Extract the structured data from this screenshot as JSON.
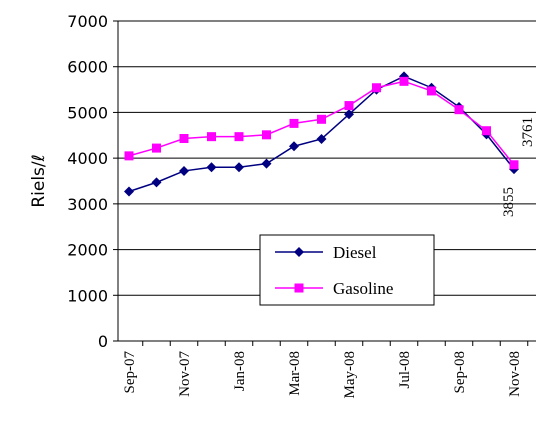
{
  "chart_data": {
    "type": "line",
    "ylabel": "Riels/ℓ",
    "ylim": [
      0,
      7000
    ],
    "y_ticks": [
      "0",
      "1000",
      "2000",
      "3000",
      "4000",
      "5000",
      "6000",
      "7000"
    ],
    "x": [
      "Sep-07",
      "Oct-07",
      "Nov-07",
      "Dec-07",
      "Jan-08",
      "Feb-08",
      "Mar-08",
      "Apr-08",
      "May-08",
      "Jun-08",
      "Jul-08",
      "Aug-08",
      "Sep-08",
      "Oct-08",
      "Nov-08"
    ],
    "x_tick_labels": [
      "Sep-07",
      "Nov-07",
      "Jan-08",
      "Mar-08",
      "May-08",
      "Jul-08",
      "Sep-08",
      "Nov-08"
    ],
    "grid": "horizontal",
    "legend_position": "center-bottom",
    "series": [
      {
        "name": "Diesel",
        "color": "#000080",
        "marker": "diamond",
        "values": [
          3270,
          3470,
          3720,
          3800,
          3800,
          3880,
          4260,
          4420,
          4960,
          5500,
          5790,
          5540,
          5120,
          4520,
          3761
        ]
      },
      {
        "name": "Gasoline",
        "color": "#ff00ff",
        "marker": "square",
        "values": [
          4050,
          4220,
          4430,
          4470,
          4470,
          4510,
          4760,
          4850,
          5150,
          5540,
          5680,
          5470,
          5060,
          4600,
          3855
        ]
      }
    ],
    "annotations": [
      "3855",
      "3761"
    ]
  }
}
